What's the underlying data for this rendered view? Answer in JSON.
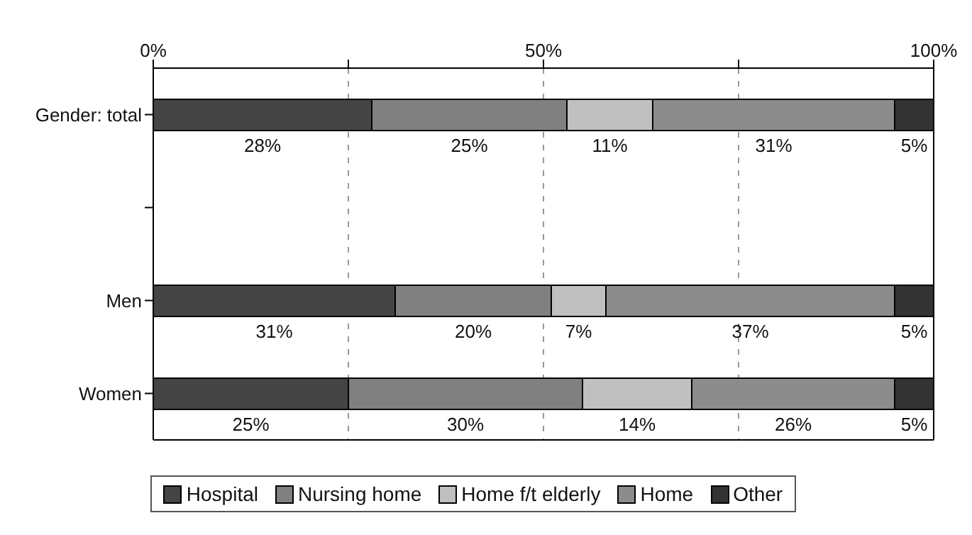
{
  "chart_data": {
    "type": "bar",
    "orientation": "horizontal",
    "stacked": true,
    "categories": [
      "Gender: total",
      null,
      "Men",
      "Women"
    ],
    "series": [
      {
        "name": "Hospital",
        "color": "#444444",
        "values": [
          28,
          null,
          31,
          25
        ],
        "value_labels": [
          "28%",
          null,
          "31%",
          "25%"
        ]
      },
      {
        "name": "Nursing home",
        "color": "#808080",
        "values": [
          25,
          null,
          20,
          30
        ],
        "value_labels": [
          "25%",
          null,
          "20%",
          "30%"
        ]
      },
      {
        "name": "Home f/t elderly",
        "color": "#c0c0c0",
        "values": [
          11,
          null,
          7,
          14
        ],
        "value_labels": [
          "11%",
          null,
          "7%",
          "14%"
        ]
      },
      {
        "name": "Home",
        "color": "#8c8c8c",
        "values": [
          31,
          null,
          37,
          26
        ],
        "value_labels": [
          "31%",
          null,
          "37%",
          "26%"
        ]
      },
      {
        "name": "Other",
        "color": "#333333",
        "values": [
          5,
          null,
          5,
          5
        ],
        "value_labels": [
          "5%",
          null,
          "5%",
          "5%"
        ]
      }
    ],
    "xlim": [
      0,
      100
    ],
    "xticks": [
      {
        "value": 0,
        "label": "0%"
      },
      {
        "value": 25,
        "label": null
      },
      {
        "value": 50,
        "label": "50%"
      },
      {
        "value": 75,
        "label": null
      },
      {
        "value": 100,
        "label": "100%"
      }
    ],
    "grid": "x",
    "legend": "bottom"
  }
}
